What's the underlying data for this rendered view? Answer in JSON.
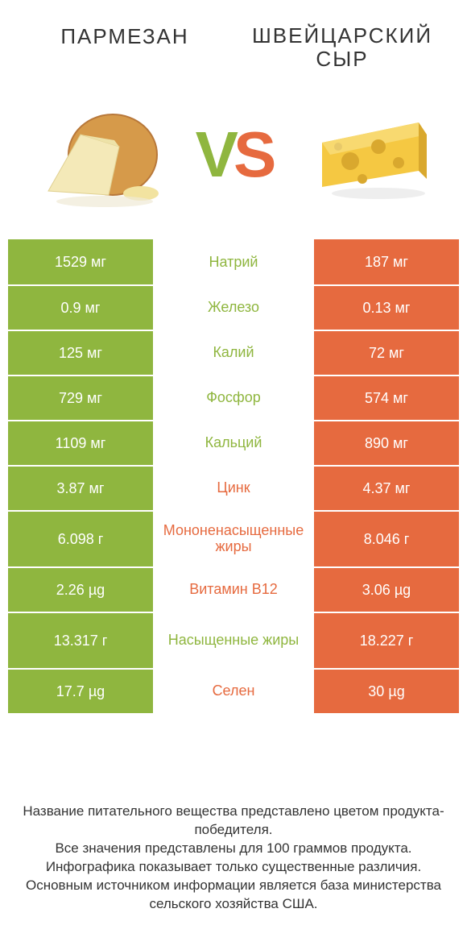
{
  "colors": {
    "green": "#8fb63f",
    "orange": "#e66a3f",
    "text": "#333333",
    "bg": "#ffffff"
  },
  "header": {
    "left_title": "ПАРМЕЗАН",
    "right_title_line1": "ШВЕЙЦАРСКИЙ",
    "right_title_line2": "СЫР",
    "vs_v": "V",
    "vs_s": "S"
  },
  "rows": [
    {
      "left": "1529 мг",
      "mid": "Натрий",
      "right": "187 мг",
      "winner": "left",
      "tall": false
    },
    {
      "left": "0.9 мг",
      "mid": "Железо",
      "right": "0.13 мг",
      "winner": "left",
      "tall": false
    },
    {
      "left": "125 мг",
      "mid": "Калий",
      "right": "72 мг",
      "winner": "left",
      "tall": false
    },
    {
      "left": "729 мг",
      "mid": "Фосфор",
      "right": "574 мг",
      "winner": "left",
      "tall": false
    },
    {
      "left": "1109 мг",
      "mid": "Кальций",
      "right": "890 мг",
      "winner": "left",
      "tall": false
    },
    {
      "left": "3.87 мг",
      "mid": "Цинк",
      "right": "4.37 мг",
      "winner": "right",
      "tall": false
    },
    {
      "left": "6.098 г",
      "mid": "Мононенасыщенные жиры",
      "right": "8.046 г",
      "winner": "right",
      "tall": true
    },
    {
      "left": "2.26 µg",
      "mid": "Витамин B12",
      "right": "3.06 µg",
      "winner": "right",
      "tall": false
    },
    {
      "left": "13.317 г",
      "mid": "Насыщенные жиры",
      "right": "18.227 г",
      "winner": "left",
      "tall": true
    },
    {
      "left": "17.7 µg",
      "mid": "Селен",
      "right": "30 µg",
      "winner": "right",
      "tall": false
    }
  ],
  "footer": {
    "line1": "Название питательного вещества представлено цветом продукта-победителя.",
    "line2": "Все значения представлены для 100 граммов продукта.",
    "line3": "Инфографика показывает только существенные различия.",
    "line4": "Основным источником информации является база министерства сельского хозяйства США."
  }
}
